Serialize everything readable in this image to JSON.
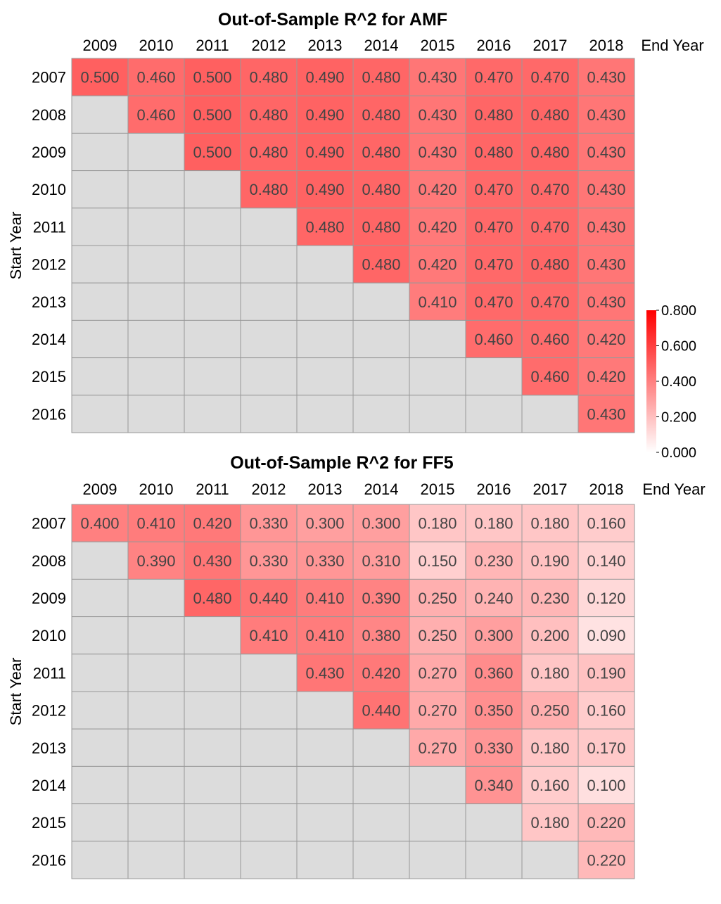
{
  "colors": {
    "empty": "#dcdcdc",
    "grid": "#999999",
    "high": "#ff0000",
    "low": "#ffffff"
  },
  "colorbar": {
    "ticks": [
      "0.800",
      "0.600",
      "0.400",
      "0.200",
      "0.000"
    ],
    "range": [
      0,
      0.8
    ]
  },
  "chart_data": [
    {
      "type": "heatmap",
      "title": "Out-of-Sample R^2 for AMF",
      "xlabel": "End Year",
      "ylabel": "Start Year",
      "x": [
        "2009",
        "2010",
        "2011",
        "2012",
        "2013",
        "2014",
        "2015",
        "2016",
        "2017",
        "2018"
      ],
      "y": [
        "2007",
        "2008",
        "2009",
        "2010",
        "2011",
        "2012",
        "2013",
        "2014",
        "2015",
        "2016"
      ],
      "values": [
        [
          0.5,
          0.46,
          0.5,
          0.48,
          0.49,
          0.48,
          0.43,
          0.47,
          0.47,
          0.43
        ],
        [
          null,
          0.46,
          0.5,
          0.48,
          0.49,
          0.48,
          0.43,
          0.48,
          0.48,
          0.43
        ],
        [
          null,
          null,
          0.5,
          0.48,
          0.49,
          0.48,
          0.43,
          0.48,
          0.48,
          0.43
        ],
        [
          null,
          null,
          null,
          0.48,
          0.49,
          0.48,
          0.42,
          0.47,
          0.47,
          0.43
        ],
        [
          null,
          null,
          null,
          null,
          0.48,
          0.48,
          0.42,
          0.47,
          0.47,
          0.43
        ],
        [
          null,
          null,
          null,
          null,
          null,
          0.48,
          0.42,
          0.47,
          0.48,
          0.43
        ],
        [
          null,
          null,
          null,
          null,
          null,
          null,
          0.41,
          0.47,
          0.47,
          0.43
        ],
        [
          null,
          null,
          null,
          null,
          null,
          null,
          null,
          0.46,
          0.46,
          0.42
        ],
        [
          null,
          null,
          null,
          null,
          null,
          null,
          null,
          null,
          0.46,
          0.42
        ],
        [
          null,
          null,
          null,
          null,
          null,
          null,
          null,
          null,
          null,
          0.43
        ]
      ]
    },
    {
      "type": "heatmap",
      "title": "Out-of-Sample R^2 for FF5",
      "xlabel": "End Year",
      "ylabel": "Start Year",
      "x": [
        "2009",
        "2010",
        "2011",
        "2012",
        "2013",
        "2014",
        "2015",
        "2016",
        "2017",
        "2018"
      ],
      "y": [
        "2007",
        "2008",
        "2009",
        "2010",
        "2011",
        "2012",
        "2013",
        "2014",
        "2015",
        "2016"
      ],
      "values": [
        [
          0.4,
          0.41,
          0.42,
          0.33,
          0.3,
          0.3,
          0.18,
          0.18,
          0.18,
          0.16
        ],
        [
          null,
          0.39,
          0.43,
          0.33,
          0.33,
          0.31,
          0.15,
          0.23,
          0.19,
          0.14
        ],
        [
          null,
          null,
          0.48,
          0.44,
          0.41,
          0.39,
          0.25,
          0.24,
          0.23,
          0.12
        ],
        [
          null,
          null,
          null,
          0.41,
          0.41,
          0.38,
          0.25,
          0.3,
          0.2,
          0.09
        ],
        [
          null,
          null,
          null,
          null,
          0.43,
          0.42,
          0.27,
          0.36,
          0.18,
          0.19
        ],
        [
          null,
          null,
          null,
          null,
          null,
          0.44,
          0.27,
          0.35,
          0.25,
          0.16
        ],
        [
          null,
          null,
          null,
          null,
          null,
          null,
          0.27,
          0.33,
          0.18,
          0.17
        ],
        [
          null,
          null,
          null,
          null,
          null,
          null,
          null,
          0.34,
          0.16,
          0.1
        ],
        [
          null,
          null,
          null,
          null,
          null,
          null,
          null,
          null,
          0.18,
          0.22
        ],
        [
          null,
          null,
          null,
          null,
          null,
          null,
          null,
          null,
          null,
          0.22
        ]
      ]
    }
  ]
}
